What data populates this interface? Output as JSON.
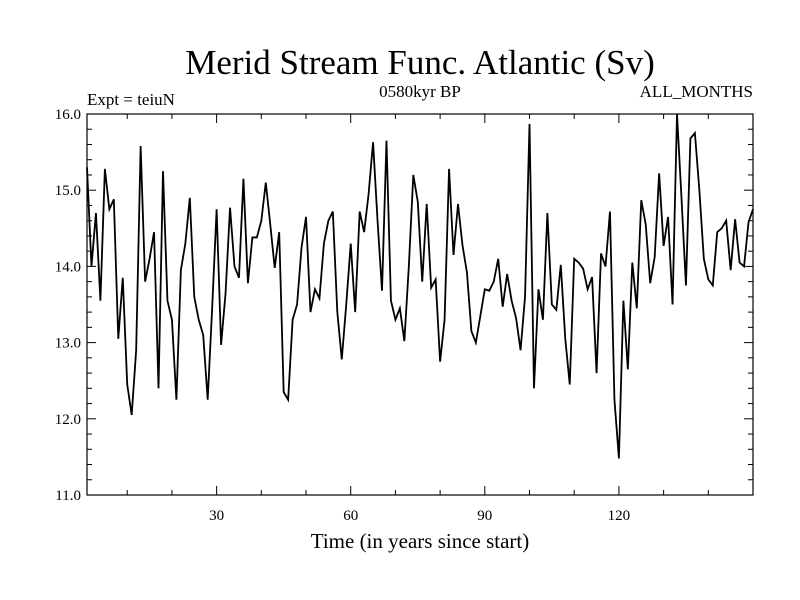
{
  "chart_data": {
    "type": "line",
    "title": "Merid Stream Func. Atlantic (Sv)",
    "header_left": "Expt = teiuN",
    "header_center": "0580kyr BP",
    "header_right": "ALL_MONTHS",
    "xlabel": "Time (in years since start)",
    "ylabel": "",
    "xlim": [
      1,
      150
    ],
    "ylim": [
      11.0,
      16.0
    ],
    "x_ticks": [
      30,
      60,
      90,
      120
    ],
    "x_tick_labels": [
      "30",
      "60",
      "90",
      "120"
    ],
    "y_ticks": [
      11.0,
      12.0,
      13.0,
      14.0,
      15.0,
      16.0
    ],
    "y_tick_labels": [
      "11.0",
      "12.0",
      "13.0",
      "14.0",
      "15.0",
      "16.0"
    ],
    "grid": false,
    "line_color": "#000000",
    "series": [
      {
        "name": "Merid Stream Func. Atlantic",
        "x": [
          1,
          2,
          3,
          4,
          5,
          6,
          7,
          8,
          9,
          10,
          11,
          12,
          13,
          14,
          15,
          16,
          17,
          18,
          19,
          20,
          21,
          22,
          23,
          24,
          25,
          26,
          27,
          28,
          29,
          30,
          31,
          32,
          33,
          34,
          35,
          36,
          37,
          38,
          39,
          40,
          41,
          42,
          43,
          44,
          45,
          46,
          47,
          48,
          49,
          50,
          51,
          52,
          53,
          54,
          55,
          56,
          57,
          58,
          59,
          60,
          61,
          62,
          63,
          64,
          65,
          66,
          67,
          68,
          69,
          70,
          71,
          72,
          73,
          74,
          75,
          76,
          77,
          78,
          79,
          80,
          81,
          82,
          83,
          84,
          85,
          86,
          87,
          88,
          89,
          90,
          91,
          92,
          93,
          94,
          95,
          96,
          97,
          98,
          99,
          100,
          101,
          102,
          103,
          104,
          105,
          106,
          107,
          108,
          109,
          110,
          111,
          112,
          113,
          114,
          115,
          116,
          117,
          118,
          119,
          120,
          121,
          122,
          123,
          124,
          125,
          126,
          127,
          128,
          129,
          130,
          131,
          132,
          133,
          134,
          135,
          136,
          137,
          138,
          139,
          140,
          141,
          142,
          143,
          144,
          145,
          146,
          147,
          148,
          149,
          150
        ],
        "values": [
          15.3,
          14.0,
          14.7,
          13.55,
          15.28,
          14.75,
          14.88,
          13.05,
          13.85,
          12.45,
          12.05,
          12.9,
          15.58,
          13.8,
          14.1,
          14.45,
          12.4,
          15.25,
          13.55,
          13.3,
          12.25,
          13.95,
          14.3,
          14.9,
          13.6,
          13.3,
          13.1,
          12.25,
          13.45,
          14.75,
          12.97,
          13.65,
          14.77,
          14.0,
          13.85,
          15.15,
          13.78,
          14.38,
          14.38,
          14.6,
          15.1,
          14.55,
          13.98,
          14.45,
          12.35,
          12.25,
          13.3,
          13.5,
          14.25,
          14.65,
          13.4,
          13.7,
          13.58,
          14.3,
          14.6,
          14.72,
          13.4,
          12.78,
          13.5,
          14.3,
          13.4,
          14.72,
          14.45,
          14.95,
          15.63,
          14.6,
          13.68,
          15.65,
          13.55,
          13.3,
          13.45,
          13.02,
          14.0,
          15.2,
          14.85,
          13.8,
          14.82,
          13.72,
          13.83,
          12.75,
          13.3,
          15.28,
          14.15,
          14.82,
          14.28,
          13.92,
          13.15,
          13.0,
          13.35,
          13.7,
          13.68,
          13.8,
          14.1,
          13.47,
          13.9,
          13.55,
          13.32,
          12.9,
          13.6,
          15.87,
          12.4,
          13.7,
          13.3,
          14.7,
          13.5,
          13.43,
          14.02,
          13.05,
          12.45,
          14.1,
          14.05,
          13.97,
          13.7,
          13.86,
          12.6,
          14.17,
          14.0,
          14.72,
          12.25,
          11.48,
          13.55,
          12.65,
          14.05,
          13.45,
          14.87,
          14.55,
          13.78,
          14.12,
          15.22,
          14.27,
          14.65,
          13.5,
          16.0,
          14.9,
          13.75,
          15.68,
          15.75,
          15.0,
          14.1,
          13.83,
          13.75,
          14.45,
          14.5,
          14.6,
          13.95,
          14.62,
          14.05,
          14.0,
          14.58,
          14.75
        ]
      }
    ]
  }
}
